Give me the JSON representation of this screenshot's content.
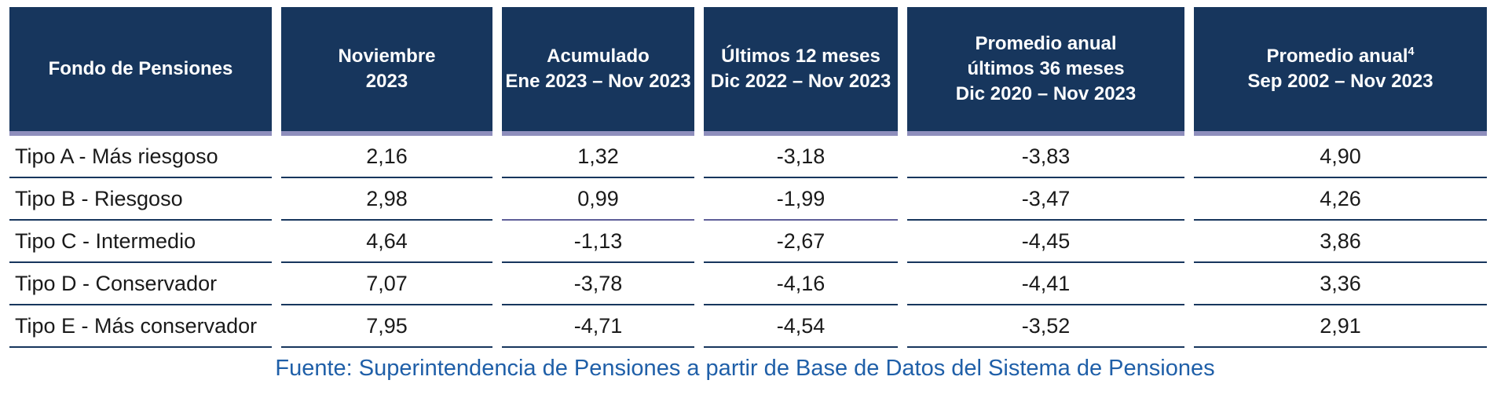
{
  "table": {
    "columns": [
      {
        "lines": [
          "Fondo de Pensiones"
        ]
      },
      {
        "lines": [
          "Noviembre",
          "2023"
        ]
      },
      {
        "lines": [
          "Acumulado",
          "Ene 2023 – Nov 2023"
        ]
      },
      {
        "lines": [
          "Últimos 12 meses",
          "Dic 2022 – Nov 2023"
        ]
      },
      {
        "lines": [
          "Promedio anual",
          "últimos 36 meses",
          "Dic 2020 – Nov 2023"
        ]
      },
      {
        "lines": [
          "Promedio anual",
          "Sep 2002 – Nov 2023"
        ],
        "superscript": "4"
      }
    ],
    "rows": [
      {
        "label": "Tipo A - Más riesgoso",
        "values": [
          "2,16",
          "1,32",
          "-3,18",
          "-3,83",
          "4,90"
        ]
      },
      {
        "label": "Tipo B - Riesgoso",
        "values": [
          "2,98",
          "0,99",
          "-1,99",
          "-3,47",
          "4,26"
        ]
      },
      {
        "label": "Tipo C - Intermedio",
        "values": [
          "4,64",
          "-1,13",
          "-2,67",
          "-4,45",
          "3,86"
        ]
      },
      {
        "label": "Tipo D - Conservador",
        "values": [
          "7,07",
          "-3,78",
          "-4,16",
          "-4,41",
          "3,36"
        ]
      },
      {
        "label": "Tipo E - Más conservador",
        "values": [
          "7,95",
          "-4,71",
          "-4,54",
          "-3,52",
          "2,91"
        ]
      }
    ]
  },
  "footer": {
    "source": "Fuente: Superintendencia de Pensiones a partir de Base de Datos del Sistema de Pensiones"
  },
  "colors": {
    "header_bg": "#17365D",
    "header_text": "#FFFFFF",
    "header_underline": "#8E8EBC",
    "row_separator": "#17365D",
    "row_separator_alt": "#5F5F99",
    "body_text": "#1A1A1A",
    "source_text": "#1F5FA8"
  }
}
